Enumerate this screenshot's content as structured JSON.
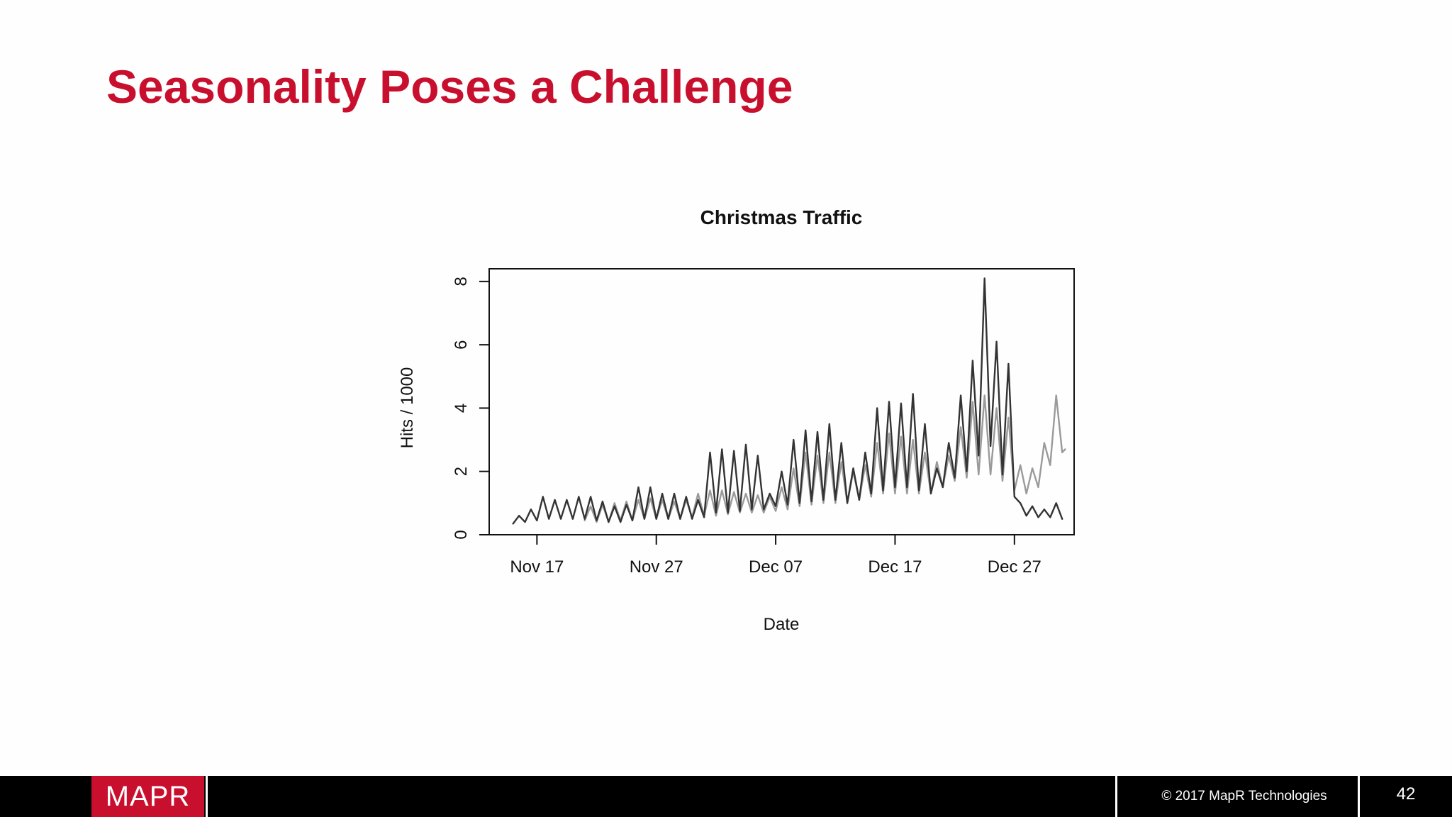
{
  "slide": {
    "title": "Seasonality Poses a Challenge"
  },
  "footer": {
    "logo_text": "MAPR",
    "copyright": "© 2017 MapR Technologies",
    "page_number": "42"
  },
  "colors": {
    "title": "#c8102e",
    "logo_bg": "#c8102e",
    "footer_bg": "#000000",
    "series_dark": "#333333",
    "series_light": "#9a9a9a"
  },
  "chart_data": {
    "type": "line",
    "title": "Christmas Traffic",
    "xlabel": "Date",
    "ylabel": "Hits / 1000",
    "x_ticks": [
      "Nov 17",
      "Nov 27",
      "Dec 07",
      "Dec 17",
      "Dec 27"
    ],
    "y_ticks": [
      "0",
      "2",
      "4",
      "6",
      "8"
    ],
    "xlim": [
      "2016-11-13",
      "2017-01-01"
    ],
    "ylim": [
      0,
      8.4
    ],
    "grid": false,
    "legend": "none",
    "sampling": "daily peak/trough of hourly series (approximate)",
    "series": [
      {
        "color": "#333333",
        "points": [
          [
            "2016-11-15",
            0.35
          ],
          [
            "2016-11-15T12",
            0.6
          ],
          [
            "2016-11-16",
            0.4
          ],
          [
            "2016-11-16T12",
            0.8
          ],
          [
            "2016-11-17",
            0.45
          ],
          [
            "2016-11-17T12",
            1.2
          ],
          [
            "2016-11-18",
            0.5
          ],
          [
            "2016-11-18T12",
            1.1
          ],
          [
            "2016-11-19",
            0.5
          ],
          [
            "2016-11-19T12",
            1.1
          ],
          [
            "2016-11-20",
            0.5
          ],
          [
            "2016-11-20T12",
            1.2
          ],
          [
            "2016-11-21",
            0.5
          ],
          [
            "2016-11-21T12",
            1.2
          ],
          [
            "2016-11-22",
            0.45
          ],
          [
            "2016-11-22T12",
            1.05
          ],
          [
            "2016-11-23",
            0.4
          ],
          [
            "2016-11-23T12",
            0.9
          ],
          [
            "2016-11-24",
            0.4
          ],
          [
            "2016-11-24T12",
            0.95
          ],
          [
            "2016-11-25",
            0.45
          ],
          [
            "2016-11-25T12",
            1.5
          ],
          [
            "2016-11-26",
            0.5
          ],
          [
            "2016-11-26T12",
            1.5
          ],
          [
            "2016-11-27",
            0.5
          ],
          [
            "2016-11-27T12",
            1.3
          ],
          [
            "2016-11-28",
            0.5
          ],
          [
            "2016-11-28T12",
            1.3
          ],
          [
            "2016-11-29",
            0.5
          ],
          [
            "2016-11-29T12",
            1.2
          ],
          [
            "2016-11-30",
            0.5
          ],
          [
            "2016-11-30T12",
            1.1
          ],
          [
            "2016-12-01",
            0.55
          ],
          [
            "2016-12-01T12",
            2.6
          ],
          [
            "2016-12-02",
            0.7
          ],
          [
            "2016-12-02T12",
            2.7
          ],
          [
            "2016-12-03",
            0.7
          ],
          [
            "2016-12-03T12",
            2.65
          ],
          [
            "2016-12-04",
            0.75
          ],
          [
            "2016-12-04T12",
            2.85
          ],
          [
            "2016-12-05",
            0.8
          ],
          [
            "2016-12-05T12",
            2.5
          ],
          [
            "2016-12-06",
            0.8
          ],
          [
            "2016-12-06T12",
            1.3
          ],
          [
            "2016-12-07",
            0.9
          ],
          [
            "2016-12-07T12",
            2.0
          ],
          [
            "2016-12-08",
            0.95
          ],
          [
            "2016-12-08T12",
            3.0
          ],
          [
            "2016-12-09",
            1.0
          ],
          [
            "2016-12-09T12",
            3.3
          ],
          [
            "2016-12-10",
            1.05
          ],
          [
            "2016-12-10T12",
            3.25
          ],
          [
            "2016-12-11",
            1.1
          ],
          [
            "2016-12-11T12",
            3.5
          ],
          [
            "2016-12-12",
            1.1
          ],
          [
            "2016-12-12T12",
            2.9
          ],
          [
            "2016-12-13",
            1.0
          ],
          [
            "2016-12-13T12",
            2.1
          ],
          [
            "2016-12-14",
            1.1
          ],
          [
            "2016-12-14T12",
            2.6
          ],
          [
            "2016-12-15",
            1.3
          ],
          [
            "2016-12-15T12",
            4.0
          ],
          [
            "2016-12-16",
            1.4
          ],
          [
            "2016-12-16T12",
            4.2
          ],
          [
            "2016-12-17",
            1.5
          ],
          [
            "2016-12-17T12",
            4.15
          ],
          [
            "2016-12-18",
            1.5
          ],
          [
            "2016-12-18T12",
            4.45
          ],
          [
            "2016-12-19",
            1.4
          ],
          [
            "2016-12-19T12",
            3.5
          ],
          [
            "2016-12-20",
            1.3
          ],
          [
            "2016-12-20T12",
            2.1
          ],
          [
            "2016-12-21",
            1.5
          ],
          [
            "2016-12-21T12",
            2.9
          ],
          [
            "2016-12-22",
            1.8
          ],
          [
            "2016-12-22T12",
            4.4
          ],
          [
            "2016-12-23",
            2.0
          ],
          [
            "2016-12-23T12",
            5.5
          ],
          [
            "2016-12-24",
            2.5
          ],
          [
            "2016-12-24T12",
            8.1
          ],
          [
            "2016-12-25",
            2.8
          ],
          [
            "2016-12-25T12",
            6.1
          ],
          [
            "2016-12-26",
            1.9
          ],
          [
            "2016-12-26T12",
            5.4
          ],
          [
            "2016-12-27",
            1.2
          ],
          [
            "2016-12-27T12",
            1.0
          ],
          [
            "2016-12-28",
            0.6
          ],
          [
            "2016-12-28T12",
            0.9
          ],
          [
            "2016-12-29",
            0.55
          ],
          [
            "2016-12-29T12",
            0.8
          ],
          [
            "2016-12-30",
            0.55
          ],
          [
            "2016-12-30T12",
            1.0
          ],
          [
            "2016-12-31",
            0.5
          ]
        ]
      },
      {
        "color": "#9a9a9a",
        "points": [
          [
            "2016-11-21",
            0.45
          ],
          [
            "2016-11-21T12",
            0.9
          ],
          [
            "2016-11-22",
            0.4
          ],
          [
            "2016-11-22T12",
            0.95
          ],
          [
            "2016-11-23",
            0.4
          ],
          [
            "2016-11-23T12",
            1.0
          ],
          [
            "2016-11-24",
            0.45
          ],
          [
            "2016-11-24T12",
            1.05
          ],
          [
            "2016-11-25",
            0.45
          ],
          [
            "2016-11-25T12",
            1.1
          ],
          [
            "2016-11-26",
            0.5
          ],
          [
            "2016-11-26T12",
            1.15
          ],
          [
            "2016-11-27",
            0.5
          ],
          [
            "2016-11-27T12",
            1.1
          ],
          [
            "2016-11-28",
            0.5
          ],
          [
            "2016-11-28T12",
            1.05
          ],
          [
            "2016-11-29",
            0.5
          ],
          [
            "2016-11-29T12",
            1.1
          ],
          [
            "2016-11-30",
            0.55
          ],
          [
            "2016-11-30T12",
            1.3
          ],
          [
            "2016-12-01",
            0.6
          ],
          [
            "2016-12-01T12",
            1.4
          ],
          [
            "2016-12-02",
            0.6
          ],
          [
            "2016-12-02T12",
            1.4
          ],
          [
            "2016-12-03",
            0.65
          ],
          [
            "2016-12-03T12",
            1.35
          ],
          [
            "2016-12-04",
            0.7
          ],
          [
            "2016-12-04T12",
            1.3
          ],
          [
            "2016-12-05",
            0.7
          ],
          [
            "2016-12-05T12",
            1.25
          ],
          [
            "2016-12-06",
            0.7
          ],
          [
            "2016-12-06T12",
            1.2
          ],
          [
            "2016-12-07",
            0.75
          ],
          [
            "2016-12-07T12",
            1.5
          ],
          [
            "2016-12-08",
            0.8
          ],
          [
            "2016-12-08T12",
            2.1
          ],
          [
            "2016-12-09",
            0.9
          ],
          [
            "2016-12-09T12",
            2.6
          ],
          [
            "2016-12-10",
            0.95
          ],
          [
            "2016-12-10T12",
            2.5
          ],
          [
            "2016-12-11",
            1.0
          ],
          [
            "2016-12-11T12",
            2.6
          ],
          [
            "2016-12-12",
            1.0
          ],
          [
            "2016-12-12T12",
            2.3
          ],
          [
            "2016-12-13",
            1.0
          ],
          [
            "2016-12-13T12",
            2.0
          ],
          [
            "2016-12-14",
            1.1
          ],
          [
            "2016-12-14T12",
            2.2
          ],
          [
            "2016-12-15",
            1.2
          ],
          [
            "2016-12-15T12",
            2.9
          ],
          [
            "2016-12-16",
            1.3
          ],
          [
            "2016-12-16T12",
            3.2
          ],
          [
            "2016-12-17",
            1.3
          ],
          [
            "2016-12-17T12",
            3.1
          ],
          [
            "2016-12-18",
            1.3
          ],
          [
            "2016-12-18T12",
            3.0
          ],
          [
            "2016-12-19",
            1.3
          ],
          [
            "2016-12-19T12",
            2.6
          ],
          [
            "2016-12-20",
            1.3
          ],
          [
            "2016-12-20T12",
            2.3
          ],
          [
            "2016-12-21",
            1.5
          ],
          [
            "2016-12-21T12",
            2.5
          ],
          [
            "2016-12-22",
            1.7
          ],
          [
            "2016-12-22T12",
            3.4
          ],
          [
            "2016-12-23",
            1.8
          ],
          [
            "2016-12-23T12",
            4.2
          ],
          [
            "2016-12-24",
            1.9
          ],
          [
            "2016-12-24T12",
            4.4
          ],
          [
            "2016-12-25",
            1.9
          ],
          [
            "2016-12-25T12",
            4.0
          ],
          [
            "2016-12-26",
            1.7
          ],
          [
            "2016-12-26T12",
            3.7
          ],
          [
            "2016-12-27",
            1.4
          ],
          [
            "2016-12-27T12",
            2.2
          ],
          [
            "2016-12-28",
            1.3
          ],
          [
            "2016-12-28T12",
            2.1
          ],
          [
            "2016-12-29",
            1.5
          ],
          [
            "2016-12-29T12",
            2.9
          ],
          [
            "2016-12-30",
            2.2
          ],
          [
            "2016-12-30T12",
            4.4
          ],
          [
            "2016-12-31",
            2.6
          ],
          [
            "2016-12-31T06",
            2.7
          ]
        ]
      }
    ]
  }
}
